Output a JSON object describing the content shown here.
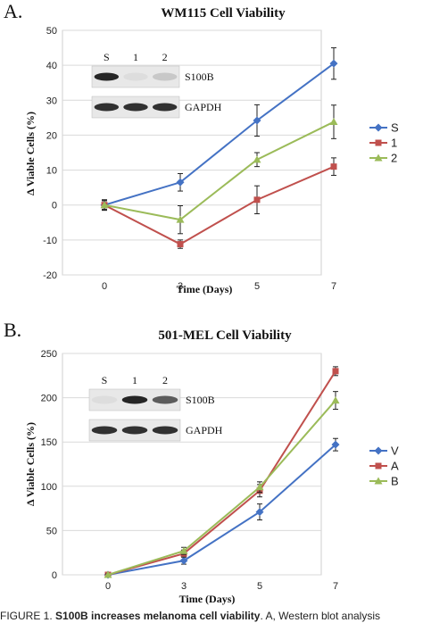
{
  "caption": {
    "prefix": "FIGURE 1. ",
    "bold": "S100B increases melanoma cell viability",
    "rest": ". A, Western blot analysis"
  },
  "chart_data": [
    {
      "panel_label": "A.",
      "type": "line",
      "title": "WM115 Cell Viability",
      "xlabel": "Time (Days)",
      "ylabel": "Δ Viable Cells (%)",
      "x": [
        0,
        3,
        5,
        7
      ],
      "ylim": [
        -20,
        50
      ],
      "yticks": [
        -20,
        -10,
        0,
        10,
        20,
        30,
        40,
        50
      ],
      "xticks": [
        0,
        3,
        5,
        7
      ],
      "grid": true,
      "legend_position": "right",
      "series": [
        {
          "name": "S",
          "color": "#4472c4",
          "marker": "diamond",
          "values": [
            0,
            6.5,
            24.2,
            40.5
          ],
          "errors": [
            1.5,
            2.5,
            4.5,
            4.5
          ]
        },
        {
          "name": "1",
          "color": "#c0504d",
          "marker": "square",
          "values": [
            0,
            -11.2,
            1.5,
            11
          ],
          "errors": [
            1.2,
            1.2,
            4,
            2.5
          ]
        },
        {
          "name": "2",
          "color": "#9bbb59",
          "marker": "triangle",
          "values": [
            0,
            -4.2,
            13,
            23.8
          ],
          "errors": [
            1.5,
            4,
            2,
            4.8
          ]
        }
      ],
      "blot": {
        "lanes": [
          "S",
          "1",
          "2"
        ],
        "rows": [
          "S100B",
          "GAPDH"
        ],
        "background": "#e8e8e8",
        "lane_text_color": "#111111"
      }
    },
    {
      "panel_label": "B.",
      "type": "line",
      "title": "501-MEL Cell Viability",
      "xlabel": "Time (Days)",
      "ylabel": "Δ Viable Cells (%)",
      "x": [
        0,
        3,
        5,
        7
      ],
      "ylim": [
        0,
        250
      ],
      "yticks": [
        0,
        50,
        100,
        150,
        200,
        250
      ],
      "xticks": [
        0,
        3,
        5,
        7
      ],
      "grid": true,
      "legend_position": "right",
      "series": [
        {
          "name": "V",
          "color": "#4472c4",
          "marker": "diamond",
          "values": [
            0,
            16,
            71,
            147
          ],
          "errors": [
            1,
            4,
            9,
            7
          ]
        },
        {
          "name": "A",
          "color": "#c0504d",
          "marker": "square",
          "values": [
            0,
            24,
            95,
            230
          ],
          "errors": [
            1,
            4,
            7,
            5
          ]
        },
        {
          "name": "B",
          "color": "#9bbb59",
          "marker": "triangle",
          "values": [
            0,
            27,
            99,
            197
          ],
          "errors": [
            1,
            4,
            6,
            10
          ]
        }
      ],
      "blot": {
        "lanes": [
          "S",
          "1",
          "2"
        ],
        "rows": [
          "S100B",
          "GAPDH"
        ],
        "background": "#e8e8e8",
        "lane_text_color": "#111111"
      }
    }
  ]
}
